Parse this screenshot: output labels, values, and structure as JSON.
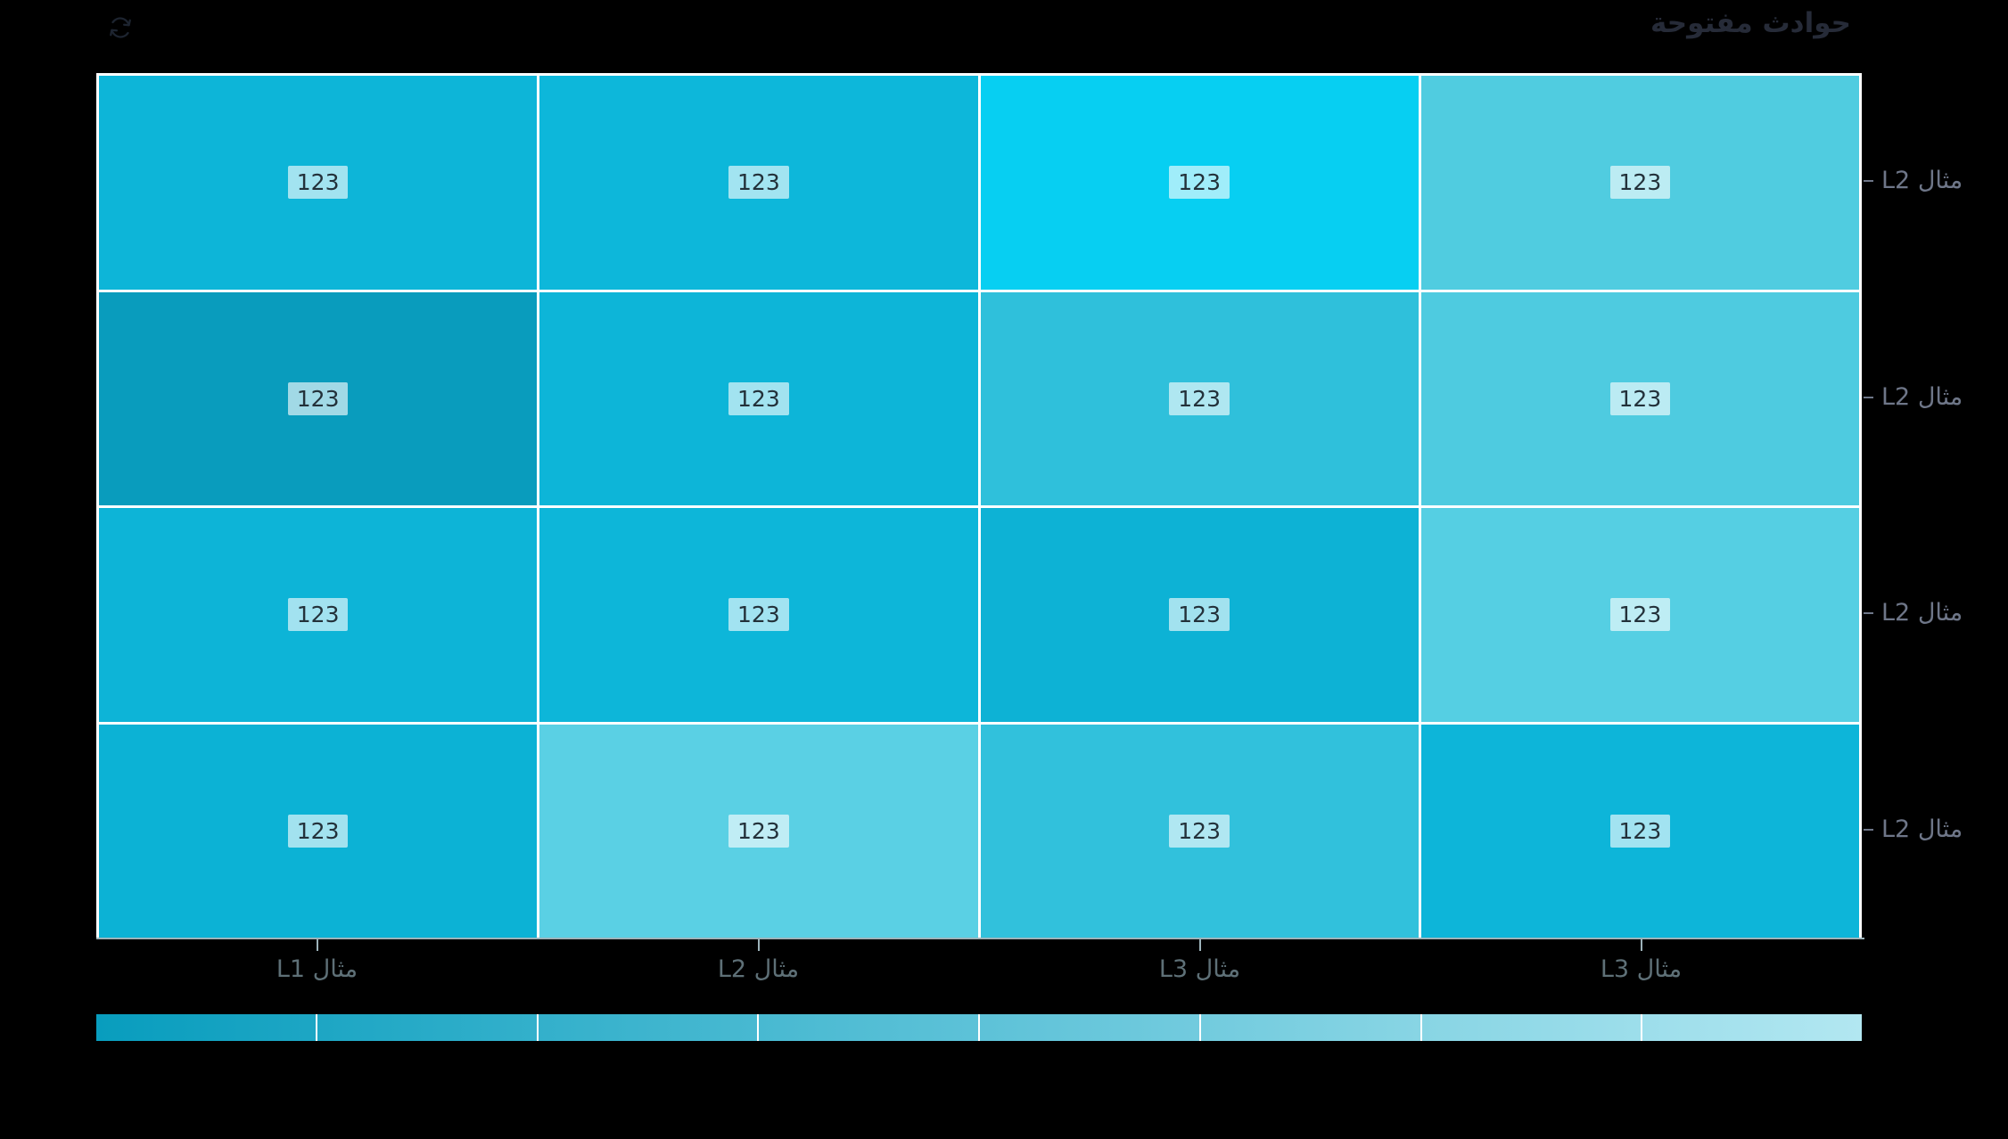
{
  "header": {
    "title": "حوادث مفتوحة"
  },
  "colors": {
    "background": "#000000",
    "title_color": "#262b38",
    "icon_color": "#1d2430",
    "y_label_color": "#6e7688",
    "x_label_color": "#5e7077",
    "axis_line_color": "#9db3ba",
    "grid_line_color": "#ffffff",
    "cell_label_bg": "rgba(255,255,255,0.62)",
    "cell_label_text": "#23313a"
  },
  "chart_data": {
    "type": "heatmap",
    "title": "حوادث مفتوحة",
    "x_categories": [
      "مثال L1",
      "مثال L2",
      "مثال L3",
      "مثال L3"
    ],
    "y_categories": [
      "مثال L2",
      "مثال L2",
      "مثال L2",
      "مثال L2"
    ],
    "legend_position": "bottom",
    "grid": "white 3px gaps, 4x4 cells",
    "rows": [
      {
        "cells": [
          {
            "value": "123",
            "color": "#0db5d8"
          },
          {
            "value": "123",
            "color": "#0db7da"
          },
          {
            "value": "123",
            "color": "#07cff2"
          },
          {
            "value": "123",
            "color": "#50cce0"
          }
        ]
      },
      {
        "cells": [
          {
            "value": "123",
            "color": "#099cbd"
          },
          {
            "value": "123",
            "color": "#0db5d8"
          },
          {
            "value": "123",
            "color": "#2fc0db"
          },
          {
            "value": "123",
            "color": "#4ecbe0"
          }
        ]
      },
      {
        "cells": [
          {
            "value": "123",
            "color": "#0db4d7"
          },
          {
            "value": "123",
            "color": "#0db6d9"
          },
          {
            "value": "123",
            "color": "#0db2d5"
          },
          {
            "value": "123",
            "color": "#55cfe3"
          }
        ]
      },
      {
        "cells": [
          {
            "value": "123",
            "color": "#0cb2d5"
          },
          {
            "value": "123",
            "color": "#5ad0e4"
          },
          {
            "value": "123",
            "color": "#31c1dc"
          },
          {
            "value": "123",
            "color": "#0db5d9"
          }
        ]
      }
    ],
    "colorbar": {
      "segments": 8,
      "gradient_start": "#089dbe",
      "gradient_end": "#b2e7f1"
    }
  }
}
